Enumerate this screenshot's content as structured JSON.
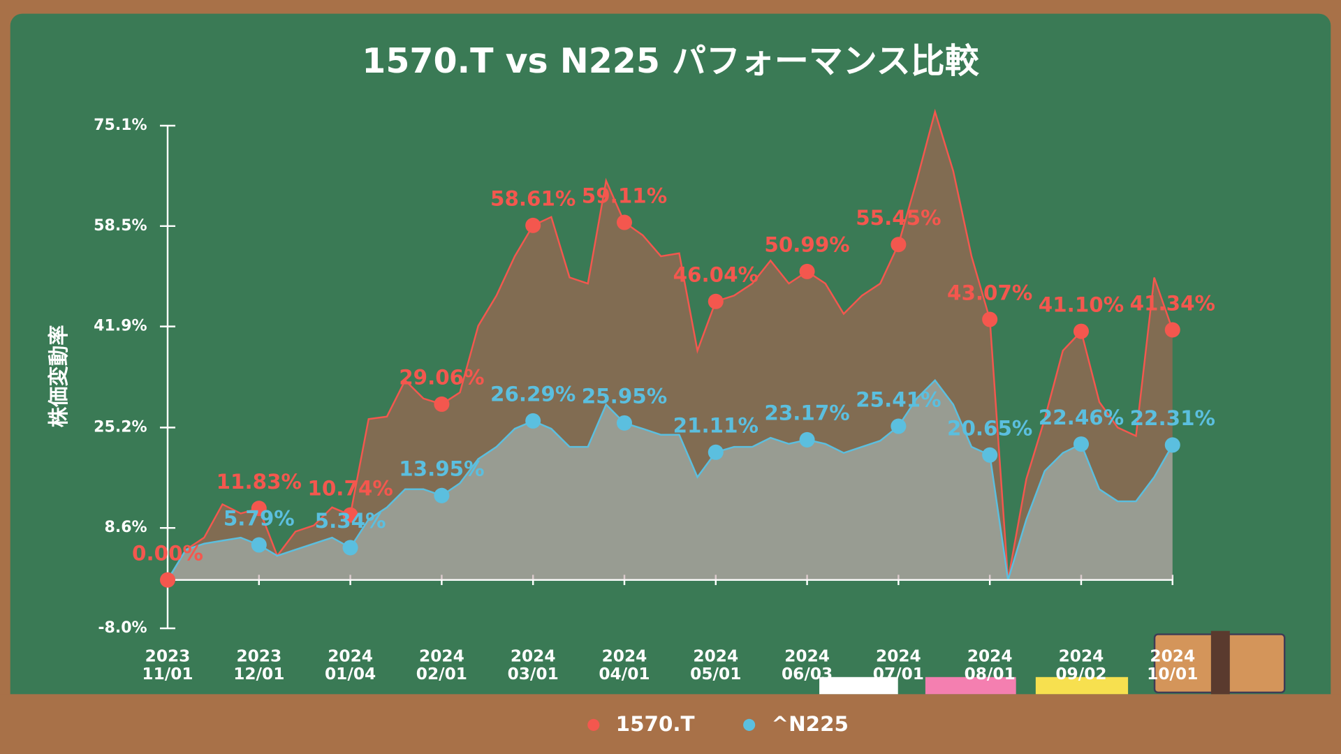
{
  "chart_data": {
    "type": "line",
    "title": "1570.T vs N225 パフォーマンス比較",
    "y_label": "株価変動率",
    "categories": [
      "2023\n11/01",
      null,
      null,
      null,
      null,
      "2023\n12/01",
      null,
      null,
      null,
      null,
      "2024\n01/04",
      null,
      null,
      null,
      null,
      "2024\n02/01",
      null,
      null,
      null,
      null,
      "2024\n03/01",
      null,
      null,
      null,
      null,
      "2024\n04/01",
      null,
      null,
      null,
      null,
      "2024\n05/01",
      null,
      null,
      null,
      null,
      "2024\n06/03",
      null,
      null,
      null,
      null,
      "2024\n07/01",
      null,
      null,
      null,
      null,
      "2024\n08/01",
      null,
      null,
      null,
      null,
      "2024\n09/02",
      null,
      null,
      null,
      null,
      "2024\n10/01"
    ],
    "series": [
      {
        "name": "1570.T",
        "color": "#f4574e",
        "values": [
          0.0,
          5,
          7,
          12.5,
          11,
          11.83,
          4,
          8,
          9,
          12,
          10.74,
          26.6,
          27,
          33,
          30,
          29.06,
          31,
          42,
          47,
          53.5,
          58.61,
          60,
          50,
          49,
          66,
          59.11,
          57,
          53.5,
          54,
          37.9,
          46.04,
          47,
          49,
          52.8,
          49,
          50.99,
          49,
          44,
          47,
          49,
          55.45,
          66,
          77.4,
          67.6,
          53.5,
          43.07,
          0,
          16.7,
          26.6,
          37.9,
          41.1,
          29.4,
          25.2,
          23.8,
          50,
          41.34
        ],
        "value_labels": [
          "0.00%",
          null,
          null,
          null,
          null,
          "11.83%",
          null,
          null,
          null,
          null,
          "10.74%",
          null,
          null,
          null,
          null,
          "29.06%",
          null,
          null,
          null,
          null,
          "58.61%",
          null,
          null,
          null,
          null,
          "59.11%",
          null,
          null,
          null,
          null,
          "46.04%",
          null,
          null,
          null,
          null,
          "50.99%",
          null,
          null,
          null,
          null,
          "55.45%",
          null,
          null,
          null,
          null,
          "43.07%",
          null,
          null,
          null,
          null,
          "41.10%",
          null,
          null,
          null,
          null,
          "41.34%"
        ]
      },
      {
        "name": "^N225",
        "color": "#5bbfdf",
        "values": [
          0.0,
          5,
          6,
          6.5,
          7,
          5.79,
          4,
          5,
          6,
          7,
          5.34,
          10,
          12,
          15,
          15,
          13.95,
          16,
          20,
          22,
          25,
          26.29,
          25,
          22,
          22,
          29,
          25.95,
          25,
          24,
          24,
          17,
          21.11,
          22,
          22,
          23.5,
          22.5,
          23.17,
          22.5,
          21,
          22,
          23,
          25.41,
          30,
          33,
          29,
          22,
          20.65,
          0,
          10,
          18,
          21,
          22.46,
          15,
          13,
          13,
          17,
          22.31
        ],
        "value_labels": [
          null,
          null,
          null,
          null,
          null,
          "5.79%",
          null,
          null,
          null,
          null,
          "5.34%",
          null,
          null,
          null,
          null,
          "13.95%",
          null,
          null,
          null,
          null,
          "26.29%",
          null,
          null,
          null,
          null,
          "25.95%",
          null,
          null,
          null,
          null,
          "21.11%",
          null,
          null,
          null,
          null,
          "23.17%",
          null,
          null,
          null,
          null,
          "25.41%",
          null,
          null,
          null,
          null,
          "20.65%",
          null,
          null,
          null,
          null,
          "22.46%",
          null,
          null,
          null,
          null,
          "22.31%"
        ]
      }
    ],
    "ylim": [
      -8.0,
      75.1
    ],
    "yticks": [
      {
        "value": -8.0,
        "label": "-8.0%"
      },
      {
        "value": 8.6,
        "label": "8.6%"
      },
      {
        "value": 25.2,
        "label": "25.2%"
      },
      {
        "value": 41.9,
        "label": "41.9%"
      },
      {
        "value": 58.5,
        "label": "58.5%"
      },
      {
        "value": 75.1,
        "label": "75.1%"
      }
    ],
    "legend": "bottom"
  }
}
